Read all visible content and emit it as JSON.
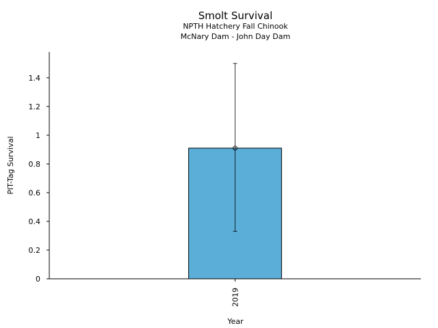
{
  "chart_data": {
    "type": "bar",
    "title": "Smolt Survival",
    "subtitle_lines": [
      "NPTH Hatchery Fall Chinook",
      "McNary Dam - John Day Dam"
    ],
    "xlabel": "Year",
    "ylabel": "PIT-Tag Survival",
    "categories": [
      "2019"
    ],
    "values": [
      0.91
    ],
    "error_low": [
      0.33
    ],
    "error_high": [
      1.5
    ],
    "ylim": [
      0,
      1.58
    ],
    "yticks": [
      0,
      0.2,
      0.4,
      0.6,
      0.8,
      1,
      1.2,
      1.4
    ],
    "ytick_labels": [
      "0",
      "0.2",
      "0.4",
      "0.6",
      "0.8",
      "1",
      "1.2",
      "1.4"
    ],
    "bar_color": "#5BAED8",
    "grid": false,
    "xtick_rotation": "vertical"
  }
}
